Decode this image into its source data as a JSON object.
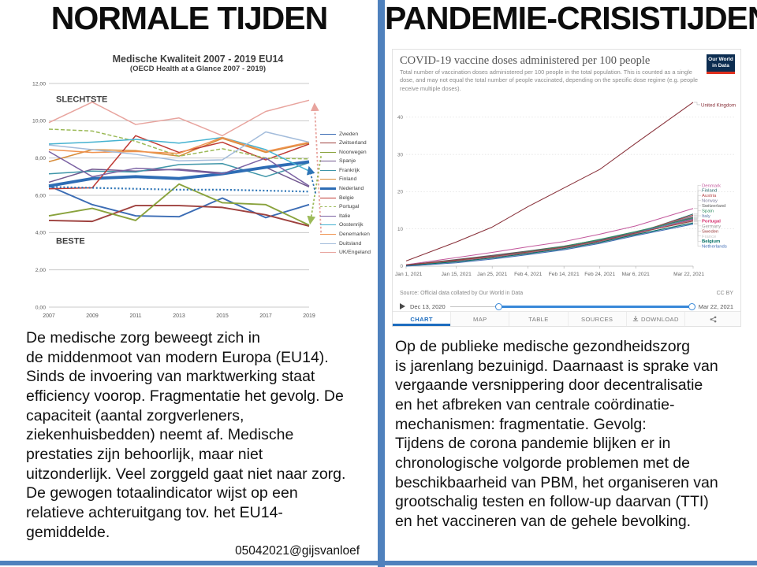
{
  "slide": {
    "accent_color": "#4f81bd",
    "left": {
      "title": "NORMALE TIJDEN",
      "paragraph": "De medische zorg beweegt zich in\nde middenmoot van modern Europa (EU14).\nSinds de invoering van marktwerking staat\nefficiency voorop. Fragmentatie het gevolg. De\ncapaciteit (aantal zorgverleners,\nziekenhuisbedden)  neemt af. Medische\nprestaties zijn behoorlijk, maar niet\nuitzonderlijk. Veel zorggeld gaat niet naar zorg.\nDe gewogen totaalindicator wijst op een\nrelatieve achteruitgang tov. het EU14-\ngemiddelde.",
      "credit": "05042021@gijsvanloef"
    },
    "right": {
      "title": "PANDEMIE-CRISISTIJDEN",
      "paragraph": "Op de publieke medische gezondheidszorg\nis jarenlang bezuinigd. Daarnaast is sprake van\nvergaande versnippering door decentralisatie\nen het afbreken van centrale coördinatie-\nmechanismen: fragmentatie. Gevolg:\nTijdens de corona pandemie blijken er in\nchronologische volgorde problemen met de\nbeschikbaarheid van PBM, het organiseren van\ngrootschalig testen en follow-up daarvan (TTI)\nen het vaccineren van de gehele bevolking."
    }
  },
  "owid": {
    "logo_line1": "Our World",
    "logo_line2": "in Data",
    "source": "Source: Official data collated by Our World in Data",
    "license": "CC BY",
    "timeline_start": "Dec 13, 2020",
    "timeline_end": "Mar 22, 2021",
    "tabs": [
      "CHART",
      "MAP",
      "TABLE",
      "SOURCES",
      "DOWNLOAD"
    ],
    "active_tab": "CHART"
  },
  "chart_data": [
    {
      "id": "left-chart",
      "type": "line",
      "title": "Medische Kwaliteit 2007 - 2019 EU14",
      "subtitle": "(OECD Health  at a Glance 2007 - 2019)",
      "x": [
        2007,
        2009,
        2011,
        2013,
        2015,
        2017,
        2019
      ],
      "ylim": [
        0,
        12
      ],
      "yticks": [
        "0,00",
        "2,00",
        "4,00",
        "6,00",
        "8,00",
        "10,00",
        "12,00"
      ],
      "annotations": [
        {
          "text": "SLECHTSTE",
          "value": 11.0
        },
        {
          "text": "BESTE",
          "value": 3.4
        }
      ],
      "series": [
        {
          "name": "Zweden",
          "color": "#3b6cb4",
          "width": 1.9,
          "values": [
            6.5,
            5.5,
            4.9,
            4.85,
            5.85,
            4.8,
            5.5
          ]
        },
        {
          "name": "Zwitserland",
          "color": "#9e413e",
          "width": 1.9,
          "values": [
            4.65,
            4.6,
            5.45,
            5.45,
            5.35,
            4.95,
            4.35
          ]
        },
        {
          "name": "Noorwegen",
          "color": "#89a23c",
          "width": 1.9,
          "values": [
            4.9,
            5.3,
            4.65,
            6.6,
            5.6,
            5.5,
            4.4
          ]
        },
        {
          "name": "Spanje",
          "color": "#71588f",
          "width": 1.5,
          "values": [
            6.7,
            7.4,
            7.3,
            7.4,
            7.2,
            7.5,
            6.45
          ]
        },
        {
          "name": "Frankrijk",
          "color": "#3e95a8",
          "width": 1.5,
          "values": [
            7.15,
            7.3,
            7.25,
            7.65,
            7.7,
            7.0,
            7.75
          ]
        },
        {
          "name": "Finland",
          "color": "#d78b38",
          "width": 1.5,
          "values": [
            7.8,
            8.45,
            8.4,
            8.1,
            9.05,
            8.3,
            8.8
          ]
        },
        {
          "name": "Nederland",
          "color": "#2e6db5",
          "width": 3.8,
          "values": [
            6.5,
            6.9,
            7.0,
            6.9,
            7.15,
            7.5,
            7.8
          ]
        },
        {
          "name": "Belgie",
          "color": "#bf3a34",
          "width": 1.5,
          "values": [
            6.35,
            6.4,
            9.2,
            8.3,
            8.85,
            7.9,
            8.75
          ]
        },
        {
          "name": "Portugal",
          "color": "#9cba58",
          "width": 1.5,
          "dash": "dash",
          "values": [
            9.55,
            9.45,
            8.9,
            8.1,
            8.5,
            8.0,
            7.95
          ]
        },
        {
          "name": "Italie",
          "color": "#7b62a3",
          "width": 1.5,
          "values": [
            8.35,
            7.0,
            7.45,
            7.35,
            7.15,
            8.0,
            6.5
          ]
        },
        {
          "name": "Oostenrijk",
          "color": "#45b2d0",
          "width": 1.5,
          "values": [
            8.75,
            8.85,
            9.0,
            8.8,
            9.1,
            8.45,
            7.3
          ]
        },
        {
          "name": "Denemarken",
          "color": "#f09350",
          "width": 1.5,
          "values": [
            8.45,
            8.3,
            8.35,
            8.25,
            9.1,
            8.35,
            8.85
          ]
        },
        {
          "name": "Duitsland",
          "color": "#a3bcdb",
          "width": 1.5,
          "values": [
            8.7,
            8.45,
            8.2,
            7.85,
            7.9,
            9.4,
            8.85
          ]
        },
        {
          "name": "UK/Engeland",
          "color": "#e8a49e",
          "width": 1.5,
          "values": [
            9.9,
            11.0,
            9.8,
            10.15,
            9.2,
            10.5,
            11.1
          ]
        },
        {
          "name": "EU14-gemiddelde",
          "color": "#2e75b6",
          "width": 2.2,
          "dash": "dot",
          "legend": false,
          "values": [
            6.45,
            6.4,
            6.35,
            6.3,
            6.3,
            6.25,
            6.2
          ]
        }
      ],
      "trend_arrows": [
        {
          "color": "#e8a49e",
          "from": [
            2019.55,
            4.0
          ],
          "to": [
            2019.25,
            10.9
          ]
        },
        {
          "color": "#9cba58",
          "from": [
            2019.55,
            8.1
          ],
          "to": [
            2019.05,
            4.5
          ]
        },
        {
          "color": "#2e75b6",
          "from": [
            2019.3,
            6.1
          ],
          "to": [
            2019.0,
            7.5
          ]
        }
      ]
    },
    {
      "id": "right-chart",
      "type": "line",
      "title": "COVID-19 vaccine doses administered per 100 people",
      "subtitle": "Total number of vaccination doses administered per 100 people in the total population. This is counted as a single dose, and may not equal the total number of people vaccinated, depending on the specific dose regime (e.g. people receive multiple doses).",
      "x": [
        "Jan 1, 2021",
        "Jan 15, 2021",
        "Jan 25, 2021",
        "Feb 4, 2021",
        "Feb 14, 2021",
        "Feb 24, 2021",
        "Mar 6, 2021",
        "Mar 22, 2021"
      ],
      "x_days": [
        0,
        14,
        24,
        34,
        44,
        54,
        64,
        80
      ],
      "ylim": [
        0,
        48
      ],
      "yticks": [
        0,
        10,
        20,
        30,
        40
      ],
      "series": [
        {
          "name": "United Kingdom",
          "color": "#883039",
          "values": [
            1.4,
            6.5,
            10.5,
            16,
            21,
            26,
            33,
            44
          ]
        },
        {
          "name": "Denmark",
          "color": "#c3599d",
          "values": [
            0.4,
            2.3,
            3.7,
            5.2,
            6.6,
            8.6,
            10.8,
            15.5
          ]
        },
        {
          "name": "Finland",
          "color": "#2b6a6c",
          "values": [
            0.2,
            1.5,
            2.6,
            3.8,
            5.0,
            6.8,
            8.8,
            14.0
          ]
        },
        {
          "name": "Austria",
          "color": "#b5494a",
          "values": [
            0.3,
            1.7,
            2.8,
            4.0,
            5.3,
            7.0,
            9.0,
            13.7
          ]
        },
        {
          "name": "Norway",
          "color": "#7c7b9b",
          "values": [
            0.2,
            1.6,
            2.7,
            3.9,
            5.2,
            6.9,
            8.9,
            13.4
          ]
        },
        {
          "name": "Switzerland",
          "color": "#5b5b5b",
          "values": [
            0.3,
            1.8,
            2.9,
            4.1,
            5.4,
            7.1,
            9.1,
            13.1
          ]
        },
        {
          "name": "Spain",
          "color": "#2f8e62",
          "values": [
            0.1,
            1.4,
            2.5,
            3.9,
            5.3,
            7.2,
            9.3,
            12.9
          ]
        },
        {
          "name": "Italy",
          "color": "#5d7aa8",
          "values": [
            0.2,
            1.5,
            2.6,
            3.8,
            5.1,
            6.9,
            9.0,
            12.7
          ]
        },
        {
          "name": "Portugal",
          "color": "#d52e6e",
          "bold": true,
          "values": [
            0.2,
            1.4,
            2.4,
            3.6,
            4.9,
            6.6,
            8.7,
            12.5
          ]
        },
        {
          "name": "Germany",
          "color": "#969696",
          "values": [
            0.2,
            1.5,
            2.5,
            3.7,
            5.0,
            6.7,
            8.8,
            12.3
          ]
        },
        {
          "name": "Sweden",
          "color": "#9b3d3d",
          "values": [
            0.3,
            1.6,
            2.6,
            3.8,
            5.1,
            6.8,
            8.9,
            12.1
          ]
        },
        {
          "name": "France",
          "color": "#c8c8c8",
          "values": [
            0.0,
            1.0,
            2.0,
            3.2,
            4.5,
            6.2,
            8.3,
            11.9
          ]
        },
        {
          "name": "Belgium",
          "color": "#006e63",
          "bold": true,
          "values": [
            0.1,
            1.2,
            2.2,
            3.4,
            4.7,
            6.4,
            8.5,
            11.6
          ]
        },
        {
          "name": "Netherlands",
          "color": "#3d6bb3",
          "values": [
            0.0,
            0.9,
            1.9,
            3.1,
            4.4,
            6.1,
            8.2,
            11.3
          ]
        }
      ]
    }
  ]
}
